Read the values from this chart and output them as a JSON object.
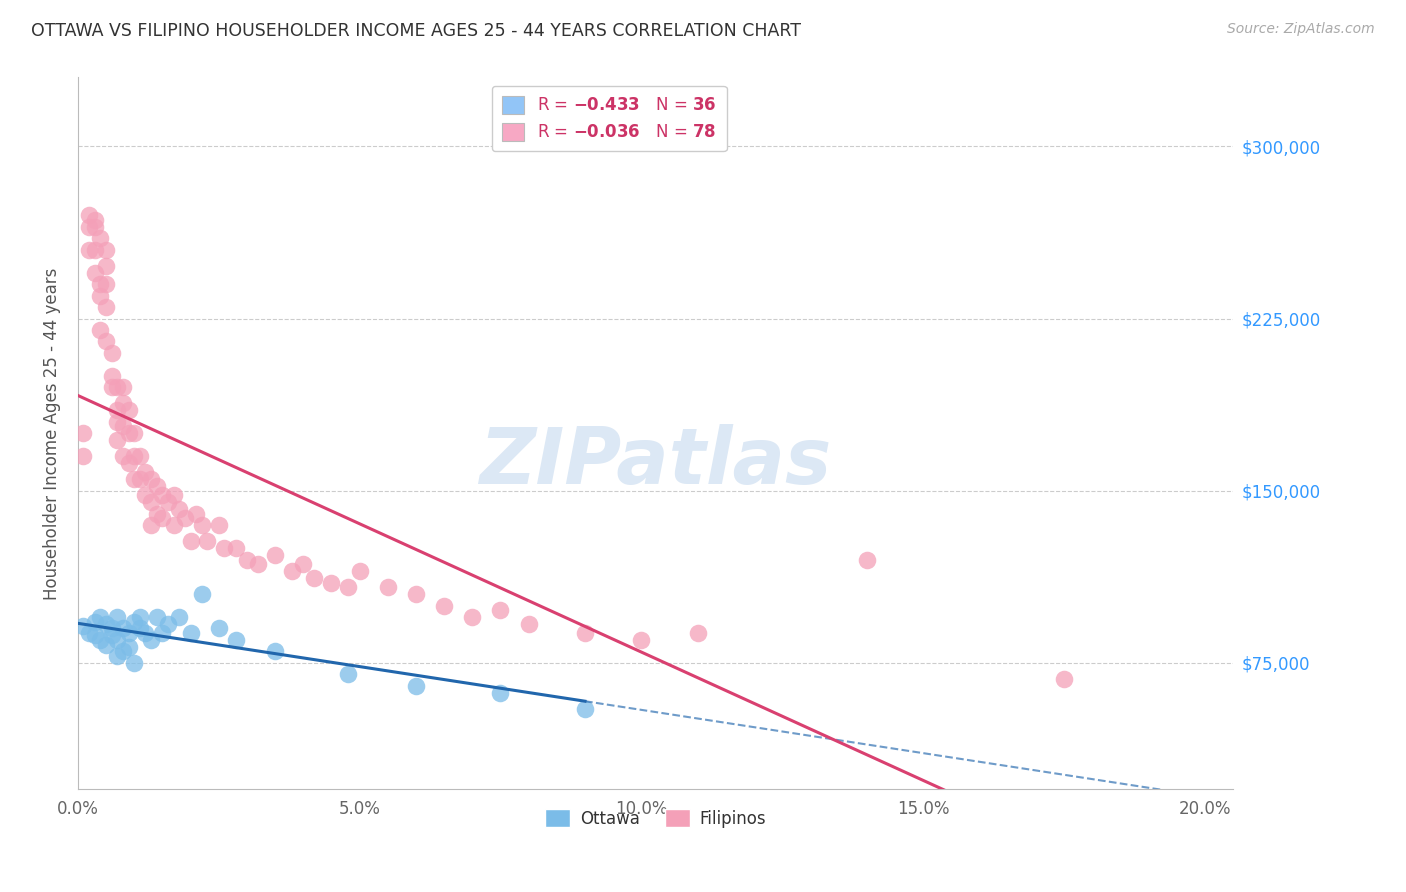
{
  "title": "OTTAWA VS FILIPINO HOUSEHOLDER INCOME AGES 25 - 44 YEARS CORRELATION CHART",
  "source": "Source: ZipAtlas.com",
  "ylabel": "Householder Income Ages 25 - 44 years",
  "xlabel_ticks": [
    "0.0%",
    "5.0%",
    "10.0%",
    "15.0%",
    "20.0%"
  ],
  "xlabel_vals": [
    0.0,
    0.05,
    0.1,
    0.15,
    0.2
  ],
  "ylabel_ticks": [
    "$75,000",
    "$150,000",
    "$225,000",
    "$300,000"
  ],
  "ylabel_vals": [
    75000,
    150000,
    225000,
    300000
  ],
  "xlim": [
    0.0,
    0.205
  ],
  "ylim": [
    20000,
    330000
  ],
  "legend_colors": [
    "#92c5f7",
    "#f7a8c4"
  ],
  "ottawa_color": "#7bbce8",
  "filipino_color": "#f4a0b8",
  "trendline_ottawa_color": "#2166ac",
  "trendline_filipino_color": "#d94070",
  "watermark": "ZIPatlas",
  "watermark_color": "#dce8f5",
  "ottawa_x": [
    0.001,
    0.002,
    0.003,
    0.003,
    0.004,
    0.004,
    0.005,
    0.005,
    0.006,
    0.006,
    0.007,
    0.007,
    0.007,
    0.008,
    0.008,
    0.009,
    0.009,
    0.01,
    0.01,
    0.011,
    0.011,
    0.012,
    0.013,
    0.014,
    0.015,
    0.016,
    0.018,
    0.02,
    0.022,
    0.025,
    0.028,
    0.035,
    0.048,
    0.06,
    0.075,
    0.09
  ],
  "ottawa_y": [
    91000,
    88000,
    93000,
    87000,
    95000,
    85000,
    92000,
    83000,
    90000,
    87000,
    95000,
    85000,
    78000,
    90000,
    80000,
    88000,
    82000,
    93000,
    75000,
    90000,
    95000,
    88000,
    85000,
    95000,
    88000,
    92000,
    95000,
    88000,
    105000,
    90000,
    85000,
    80000,
    70000,
    65000,
    62000,
    55000
  ],
  "filipino_x": [
    0.001,
    0.001,
    0.002,
    0.002,
    0.002,
    0.003,
    0.003,
    0.003,
    0.003,
    0.004,
    0.004,
    0.004,
    0.004,
    0.005,
    0.005,
    0.005,
    0.005,
    0.005,
    0.006,
    0.006,
    0.006,
    0.007,
    0.007,
    0.007,
    0.007,
    0.008,
    0.008,
    0.008,
    0.008,
    0.009,
    0.009,
    0.009,
    0.01,
    0.01,
    0.01,
    0.011,
    0.011,
    0.012,
    0.012,
    0.013,
    0.013,
    0.013,
    0.014,
    0.014,
    0.015,
    0.015,
    0.016,
    0.017,
    0.017,
    0.018,
    0.019,
    0.02,
    0.021,
    0.022,
    0.023,
    0.025,
    0.026,
    0.028,
    0.03,
    0.032,
    0.035,
    0.038,
    0.04,
    0.042,
    0.045,
    0.048,
    0.05,
    0.055,
    0.06,
    0.065,
    0.07,
    0.075,
    0.08,
    0.09,
    0.1,
    0.11,
    0.14,
    0.175
  ],
  "filipino_y": [
    175000,
    165000,
    270000,
    265000,
    255000,
    265000,
    268000,
    255000,
    245000,
    260000,
    240000,
    235000,
    220000,
    255000,
    248000,
    240000,
    230000,
    215000,
    210000,
    200000,
    195000,
    195000,
    185000,
    180000,
    172000,
    195000,
    188000,
    178000,
    165000,
    185000,
    175000,
    162000,
    175000,
    165000,
    155000,
    165000,
    155000,
    158000,
    148000,
    155000,
    145000,
    135000,
    152000,
    140000,
    148000,
    138000,
    145000,
    148000,
    135000,
    142000,
    138000,
    128000,
    140000,
    135000,
    128000,
    135000,
    125000,
    125000,
    120000,
    118000,
    122000,
    115000,
    118000,
    112000,
    110000,
    108000,
    115000,
    108000,
    105000,
    100000,
    95000,
    98000,
    92000,
    88000,
    85000,
    88000,
    120000,
    68000
  ]
}
